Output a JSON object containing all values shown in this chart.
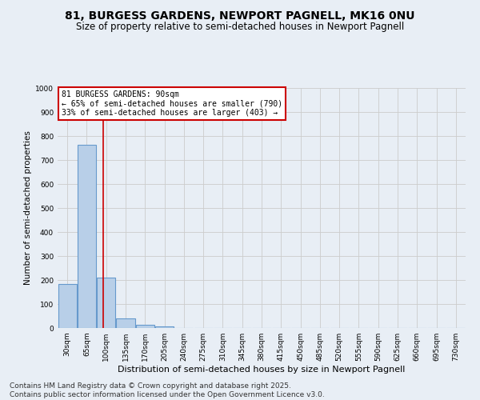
{
  "title": "81, BURGESS GARDENS, NEWPORT PAGNELL, MK16 0NU",
  "subtitle": "Size of property relative to semi-detached houses in Newport Pagnell",
  "xlabel": "Distribution of semi-detached houses by size in Newport Pagnell",
  "ylabel": "Number of semi-detached properties",
  "categories": [
    "30sqm",
    "65sqm",
    "100sqm",
    "135sqm",
    "170sqm",
    "205sqm",
    "240sqm",
    "275sqm",
    "310sqm",
    "345sqm",
    "380sqm",
    "415sqm",
    "450sqm",
    "485sqm",
    "520sqm",
    "555sqm",
    "590sqm",
    "625sqm",
    "660sqm",
    "695sqm",
    "730sqm"
  ],
  "values": [
    185,
    765,
    210,
    40,
    12,
    8,
    0,
    0,
    0,
    0,
    0,
    0,
    0,
    0,
    0,
    0,
    0,
    0,
    0,
    0,
    0
  ],
  "bar_color": "#b8cfe8",
  "bar_edge_color": "#6699cc",
  "property_line_x": 1.85,
  "annotation_text": "81 BURGESS GARDENS: 90sqm\n← 65% of semi-detached houses are smaller (790)\n33% of semi-detached houses are larger (403) →",
  "annotation_box_color": "#ffffff",
  "annotation_box_edge": "#cc0000",
  "red_line_color": "#cc0000",
  "ylim": [
    0,
    1000
  ],
  "yticks": [
    0,
    100,
    200,
    300,
    400,
    500,
    600,
    700,
    800,
    900,
    1000
  ],
  "grid_color": "#cccccc",
  "bg_color": "#e8eef5",
  "footer_line1": "Contains HM Land Registry data © Crown copyright and database right 2025.",
  "footer_line2": "Contains public sector information licensed under the Open Government Licence v3.0.",
  "title_fontsize": 10,
  "subtitle_fontsize": 8.5,
  "footer_fontsize": 6.5,
  "ylabel_fontsize": 7.5,
  "xlabel_fontsize": 8,
  "tick_fontsize": 6.5,
  "annot_fontsize": 7
}
